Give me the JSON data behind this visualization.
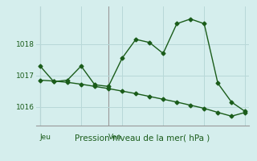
{
  "xlabel": "Pression niveau de la mer( hPa )",
  "background_color": "#d5eeed",
  "grid_color": "#b8d8d8",
  "line_color": "#1a5c1a",
  "axis_color": "#999999",
  "ylim": [
    1015.4,
    1019.2
  ],
  "yticks": [
    1016,
    1017,
    1018
  ],
  "xlim": [
    -0.3,
    15.3
  ],
  "x_jeu": 0.0,
  "x_ven": 5.0,
  "line1_x": [
    0,
    1,
    2,
    3,
    4,
    5,
    6,
    7,
    8,
    9,
    10,
    11,
    12,
    13,
    14,
    15
  ],
  "line1_y": [
    1017.3,
    1016.8,
    1016.85,
    1017.3,
    1016.7,
    1016.65,
    1017.55,
    1018.15,
    1018.05,
    1017.7,
    1018.65,
    1018.8,
    1018.65,
    1016.75,
    1016.15,
    1015.85
  ],
  "line2_x": [
    0,
    1,
    2,
    3,
    4,
    5,
    6,
    7,
    8,
    9,
    10,
    11,
    12,
    13,
    14,
    15
  ],
  "line2_y": [
    1016.85,
    1016.82,
    1016.78,
    1016.72,
    1016.65,
    1016.58,
    1016.5,
    1016.42,
    1016.33,
    1016.24,
    1016.15,
    1016.05,
    1015.95,
    1015.82,
    1015.7,
    1015.82
  ],
  "font_color": "#1a5c1a",
  "xlabel_fontsize": 7.5,
  "ytick_fontsize": 6.5,
  "xtick_fontsize": 6.5,
  "marker_size": 2.5,
  "linewidth": 1.0
}
